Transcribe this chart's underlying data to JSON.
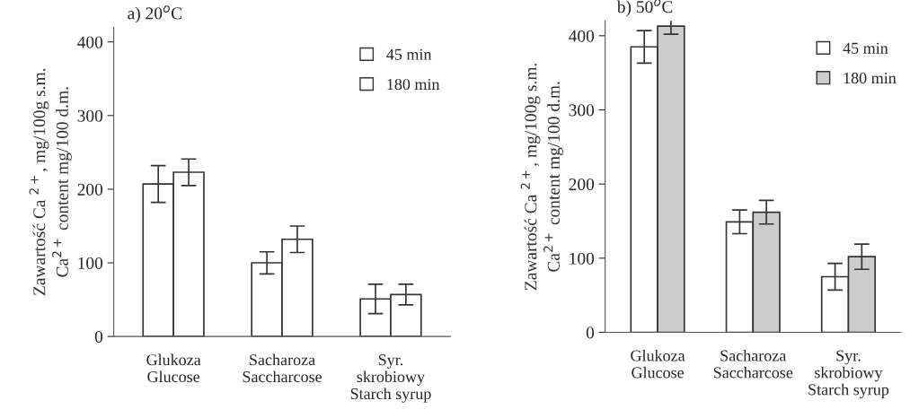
{
  "chart_data": [
    {
      "type": "bar",
      "title": "a) 20$^{o}$C",
      "ylabel": "Zawartość Ca $^{2+}$, mg/100g s.m.\nCa$^{2+}$ content mg/100 d.m.",
      "categories": [
        "Glukoza\nGlucose",
        "Sacharoza\nSaccharcose",
        "Syr.\nskrobiowy\nStarch syrup"
      ],
      "series": [
        {
          "name": "45 min",
          "color": "#ffffff",
          "values": [
            207,
            100,
            51
          ],
          "errors": [
            25,
            15,
            20
          ]
        },
        {
          "name": "180 min",
          "color": "#ffffff",
          "values": [
            223,
            132,
            57
          ],
          "errors": [
            18,
            18,
            14
          ]
        }
      ],
      "ylim": [
        0,
        420
      ],
      "yticks": [
        0,
        100,
        200,
        300,
        400
      ],
      "legend": "top right",
      "grid": false
    },
    {
      "type": "bar",
      "title": "b) 50$^{o}$C",
      "ylabel": "Zawartość Ca $^{2+}$, mg/100g s.m.\nCa$^{2+}$ content mg/100 d.m.",
      "categories": [
        "Glukoza\nGlucose",
        "Sacharoza\nSaccharcose",
        "Syr.\nskrobiowy\nStarch syrup"
      ],
      "series": [
        {
          "name": "45 min",
          "color": "#ffffff",
          "values": [
            385,
            149,
            75
          ],
          "errors": [
            22,
            16,
            18
          ]
        },
        {
          "name": "180 min",
          "color": "#cccccc",
          "values": [
            413,
            162,
            102
          ],
          "errors": [
            11,
            16,
            17
          ]
        }
      ],
      "ylim": [
        0,
        420
      ],
      "yticks": [
        0,
        100,
        200,
        300,
        400
      ],
      "legend": "top right",
      "grid": false
    }
  ]
}
